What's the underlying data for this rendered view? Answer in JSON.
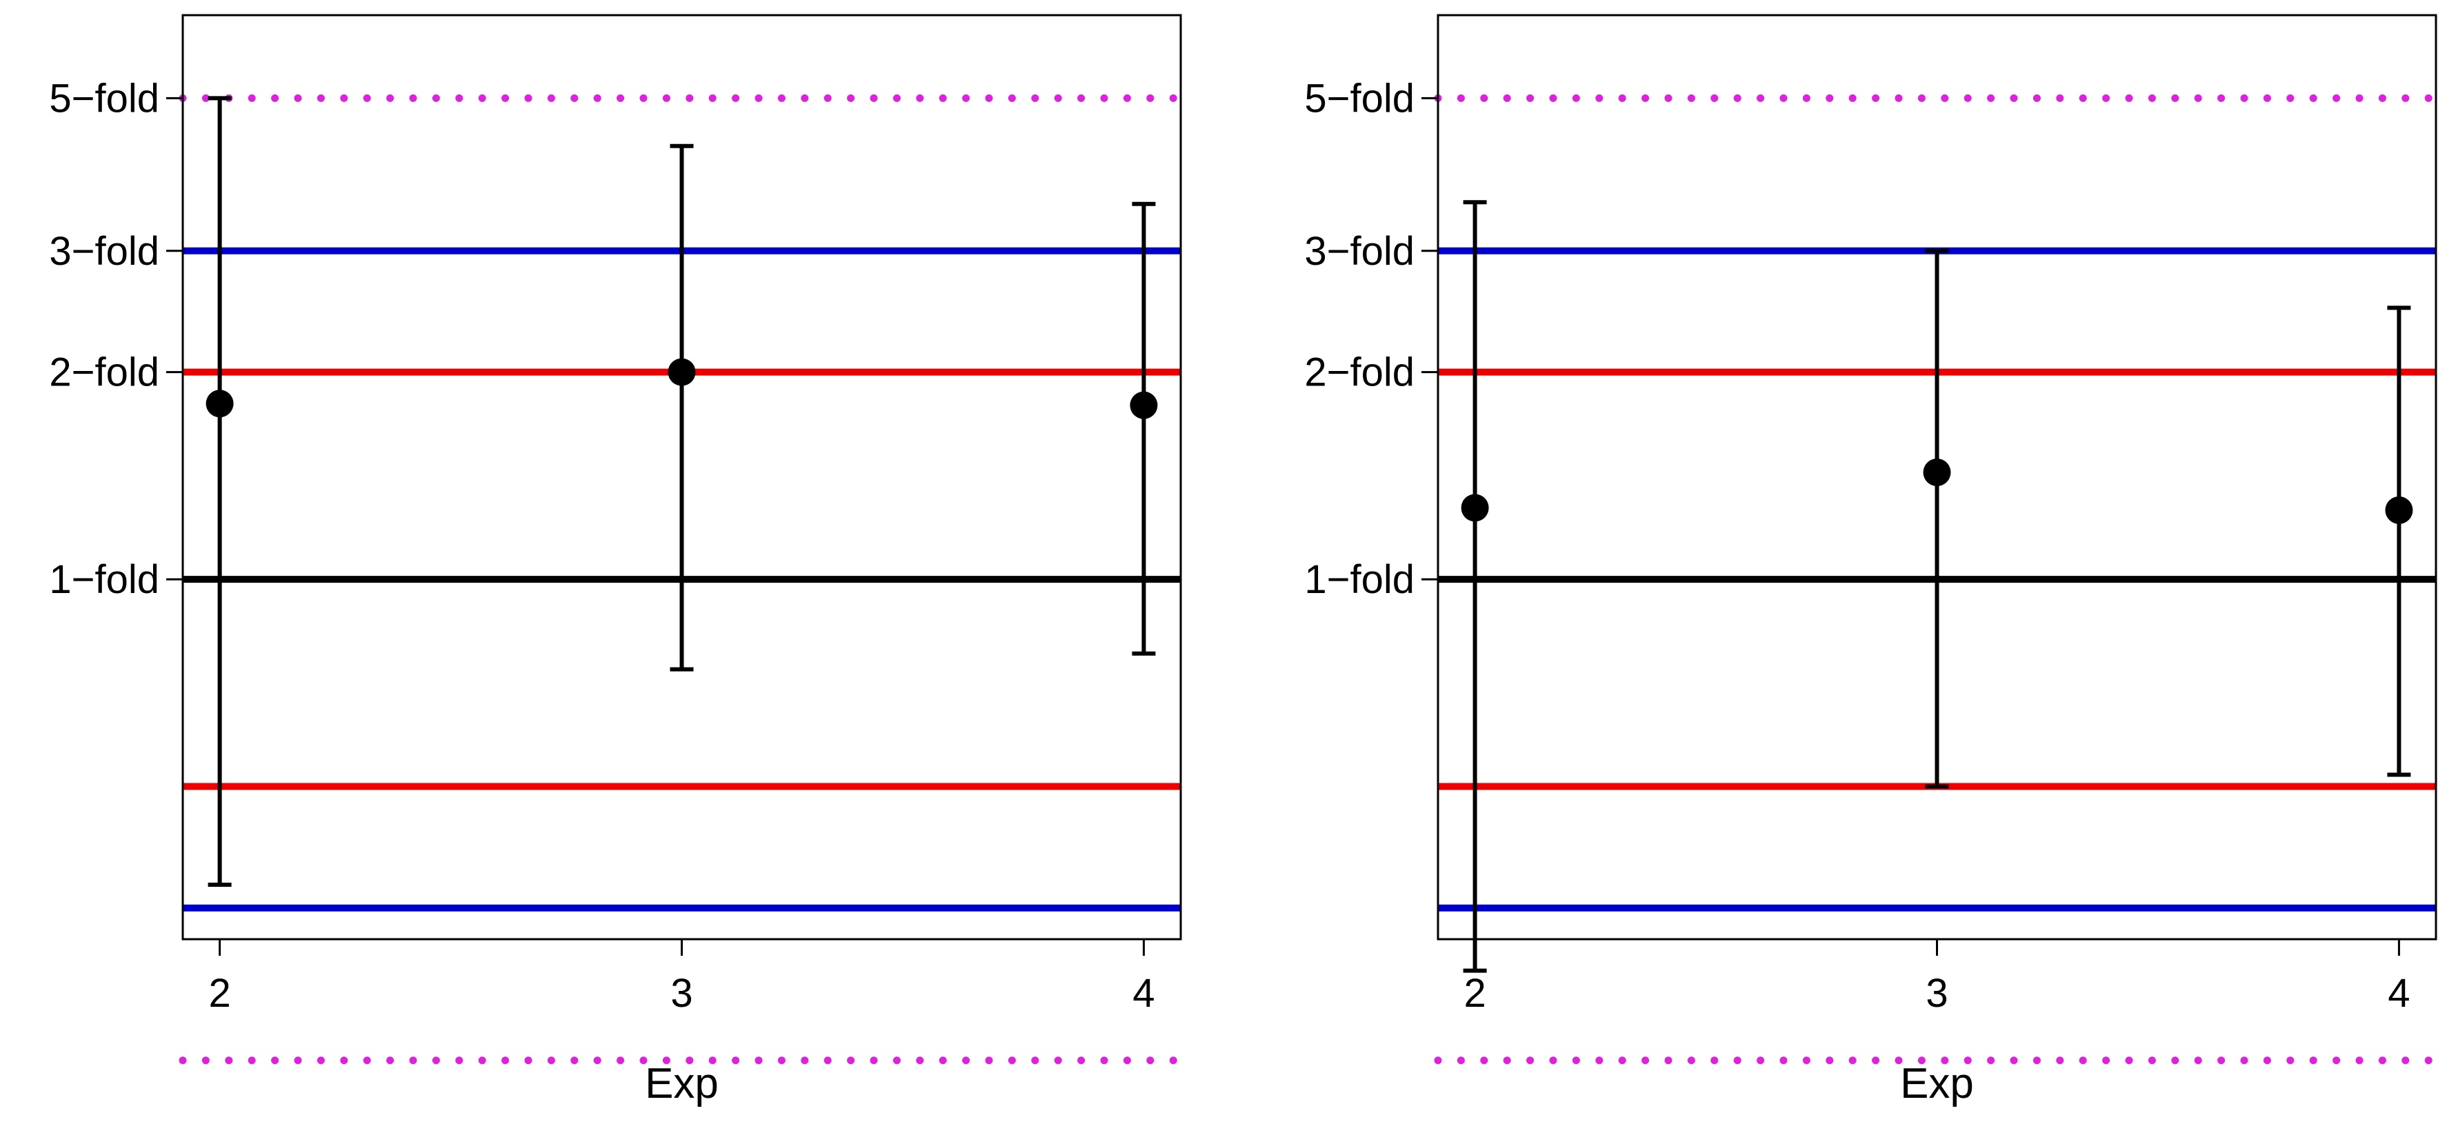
{
  "chart_data": [
    {
      "type": "errorbar",
      "xlabel": "Exp",
      "ylabel": "",
      "x_ticks": [
        "2",
        "3",
        "4"
      ],
      "x_range": [
        1.92,
        4.08
      ],
      "y_range": [
        0.3,
        6.6
      ],
      "y_ticks": [
        {
          "value": 1,
          "label": "1−fold"
        },
        {
          "value": 2,
          "label": "2−fold"
        },
        {
          "value": 3,
          "label": "3−fold"
        },
        {
          "value": 5,
          "label": "5−fold"
        }
      ],
      "reference_lines": [
        {
          "value": 5,
          "color": "#e020e0",
          "style": "dotted"
        },
        {
          "value": 3,
          "color": "#0000cc",
          "style": "solid"
        },
        {
          "value": 2,
          "color": "#ee0000",
          "style": "solid"
        },
        {
          "value": 1,
          "color": "#000000",
          "style": "solid"
        },
        {
          "value": 0.5,
          "color": "#ee0000",
          "style": "solid"
        },
        {
          "value": 0.333,
          "color": "#0000cc",
          "style": "solid"
        },
        {
          "value": 0.2,
          "color": "#e020e0",
          "style": "dotted"
        }
      ],
      "points": [
        {
          "x": 2,
          "y": 1.8,
          "lower": 0.36,
          "upper": 5.0
        },
        {
          "x": 3,
          "y": 2.0,
          "lower": 0.74,
          "upper": 4.26
        },
        {
          "x": 4,
          "y": 1.79,
          "lower": 0.78,
          "upper": 3.51
        }
      ]
    },
    {
      "type": "errorbar",
      "xlabel": "Exp",
      "ylabel": "",
      "x_ticks": [
        "2",
        "3",
        "4"
      ],
      "x_range": [
        1.92,
        4.08
      ],
      "y_range": [
        0.3,
        6.6
      ],
      "y_ticks": [
        {
          "value": 1,
          "label": "1−fold"
        },
        {
          "value": 2,
          "label": "2−fold"
        },
        {
          "value": 3,
          "label": "3−fold"
        },
        {
          "value": 5,
          "label": "5−fold"
        }
      ],
      "reference_lines": [
        {
          "value": 5,
          "color": "#e020e0",
          "style": "dotted"
        },
        {
          "value": 3,
          "color": "#0000cc",
          "style": "solid"
        },
        {
          "value": 2,
          "color": "#ee0000",
          "style": "solid"
        },
        {
          "value": 1,
          "color": "#000000",
          "style": "solid"
        },
        {
          "value": 0.5,
          "color": "#ee0000",
          "style": "solid"
        },
        {
          "value": 0.333,
          "color": "#0000cc",
          "style": "solid"
        },
        {
          "value": 0.2,
          "color": "#e020e0",
          "style": "dotted"
        }
      ],
      "points": [
        {
          "x": 2,
          "y": 1.27,
          "lower": 0.27,
          "upper": 3.53
        },
        {
          "x": 3,
          "y": 1.43,
          "lower": 0.5,
          "upper": 3.0
        },
        {
          "x": 4,
          "y": 1.26,
          "lower": 0.52,
          "upper": 2.48
        }
      ]
    }
  ]
}
